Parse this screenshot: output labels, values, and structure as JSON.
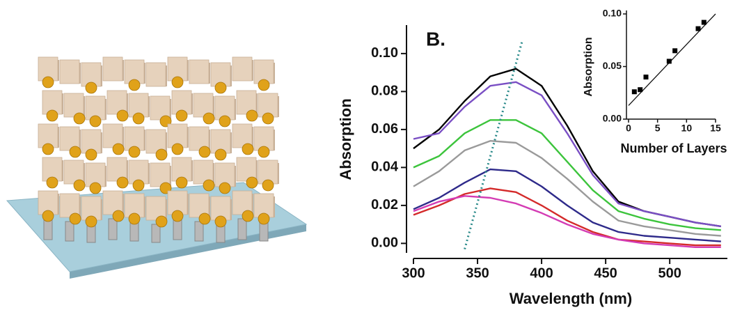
{
  "chart_data": [
    {
      "type": "line",
      "annotation": "B.",
      "x_label": "Wavelength (nm)",
      "y_label": "Absorption",
      "x": [
        300,
        320,
        340,
        360,
        380,
        400,
        420,
        440,
        460,
        480,
        500,
        520,
        540
      ],
      "series": [
        {
          "color": "#000000",
          "values": [
            0.05,
            0.06,
            0.075,
            0.088,
            0.092,
            0.083,
            0.062,
            0.038,
            0.022,
            0.017,
            0.014,
            0.011,
            0.009
          ]
        },
        {
          "color": "#7a4fc4",
          "values": [
            0.055,
            0.058,
            0.072,
            0.083,
            0.085,
            0.078,
            0.058,
            0.036,
            0.021,
            0.017,
            0.014,
            0.011,
            0.009
          ]
        },
        {
          "color": "#3cc43c",
          "values": [
            0.04,
            0.046,
            0.058,
            0.065,
            0.065,
            0.058,
            0.043,
            0.028,
            0.017,
            0.013,
            0.01,
            0.008,
            0.007
          ]
        },
        {
          "color": "#9a9a9a",
          "values": [
            0.03,
            0.038,
            0.049,
            0.054,
            0.053,
            0.045,
            0.034,
            0.022,
            0.012,
            0.009,
            0.007,
            0.005,
            0.004
          ]
        },
        {
          "color": "#2e2a8a",
          "values": [
            0.018,
            0.024,
            0.032,
            0.039,
            0.038,
            0.03,
            0.02,
            0.011,
            0.006,
            0.004,
            0.003,
            0.002,
            0.001
          ]
        },
        {
          "color": "#d42a2a",
          "values": [
            0.015,
            0.02,
            0.026,
            0.029,
            0.027,
            0.02,
            0.012,
            0.006,
            0.002,
            0.001,
            0.0,
            -0.001,
            -0.001
          ]
        },
        {
          "color": "#d43cb4",
          "values": [
            0.017,
            0.022,
            0.025,
            0.024,
            0.021,
            0.016,
            0.01,
            0.005,
            0.002,
            0.0,
            -0.001,
            -0.002,
            -0.002
          ]
        }
      ],
      "guide": {
        "color": "#2a8a8a",
        "x": [
          340,
          385
        ],
        "y": [
          -0.003,
          0.107
        ]
      },
      "xlim": [
        300,
        545
      ],
      "xticks": [
        300,
        350,
        400,
        450,
        500
      ],
      "ylim": [
        -0.005,
        0.115
      ],
      "yticks": [
        {
          "value": 0,
          "label": "0.00"
        },
        {
          "value": 0.02,
          "label": "0.02"
        },
        {
          "value": 0.04,
          "label": "0.04"
        },
        {
          "value": 0.06,
          "label": "0.06"
        },
        {
          "value": 0.08,
          "label": "0.08"
        },
        {
          "value": 0.1,
          "label": "0.10"
        }
      ]
    },
    {
      "type": "scatter",
      "x_label": "Number of Layers",
      "y_label": "Absorption",
      "x": [
        1,
        2,
        3,
        7,
        8,
        12,
        13
      ],
      "values": [
        0.026,
        0.028,
        0.04,
        0.055,
        0.065,
        0.086,
        0.092
      ],
      "color": "#000000",
      "fit": {
        "x": [
          0,
          15
        ],
        "y": [
          0.013,
          0.1
        ]
      },
      "xlim": [
        0,
        15
      ],
      "xticks": [
        0,
        5,
        10,
        15
      ],
      "ylim": [
        0,
        0.1
      ],
      "yticks": [
        {
          "value": 0,
          "label": "0.00"
        },
        {
          "value": 0.05,
          "label": "0.05"
        },
        {
          "value": 0.1,
          "label": "0.10"
        }
      ]
    }
  ]
}
